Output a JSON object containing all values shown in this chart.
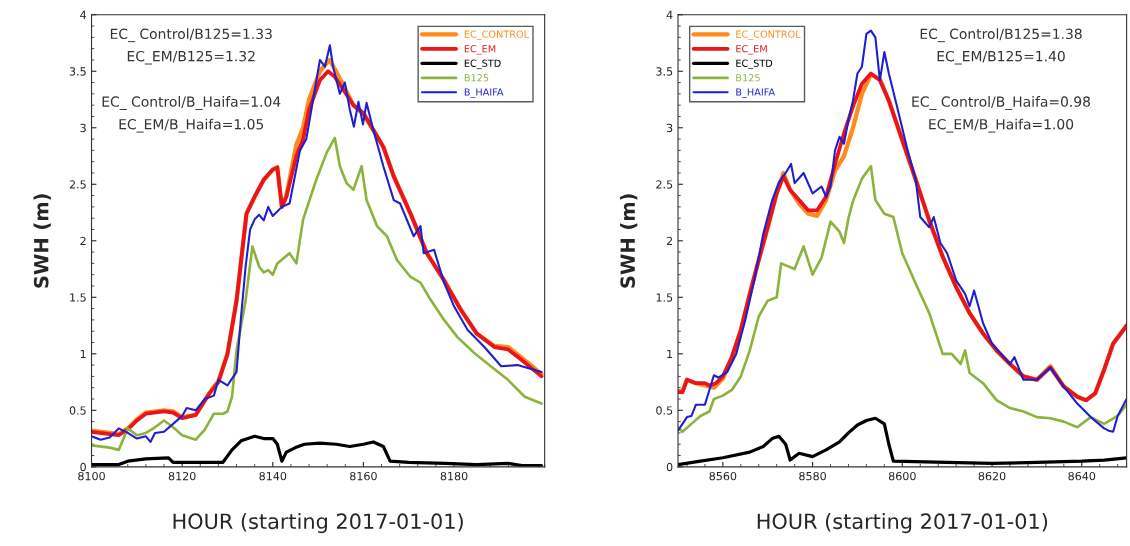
{
  "chart_data": [
    {
      "type": "line",
      "xlabel": "HOUR (starting 2017-01-01)",
      "ylabel": "SWH (m)",
      "xlim": [
        8100,
        8200
      ],
      "ylim": [
        0,
        4
      ],
      "xticks": [
        8100,
        8120,
        8140,
        8160,
        8180
      ],
      "yticks": [
        0,
        0.5,
        1,
        1.5,
        2,
        2.5,
        3,
        3.5,
        4
      ],
      "grid": false,
      "legend": "top right",
      "annotations": [
        "EC_ Control/B125=1.33",
        "EC_EM/B125=1.32",
        "EC_ Control/B_Haifa=1.04",
        "EC_EM/B_Haifa=1.05"
      ],
      "series": [
        {
          "name": "EC_CONTROL",
          "color": "#ff8c1a",
          "x": [
            8100,
            8104,
            8106,
            8108,
            8110,
            8112,
            8116,
            8118,
            8120,
            8123,
            8126,
            8128,
            8130,
            8132,
            8134.2,
            8136,
            8138,
            8140,
            8141,
            8142,
            8143,
            8145.2,
            8146.7,
            8148,
            8150.4,
            8152.5,
            8153.7,
            8155.5,
            8157.8,
            8160,
            8162.2,
            8164.4,
            8166.7,
            8170.4,
            8174,
            8177.8,
            8181.5,
            8185,
            8188.9,
            8191.9,
            8194.8,
            8199.3
          ],
          "values": [
            0.32,
            0.3,
            0.29,
            0.34,
            0.42,
            0.48,
            0.5,
            0.49,
            0.44,
            0.46,
            0.65,
            0.76,
            1.0,
            1.47,
            2.24,
            2.39,
            2.54,
            2.63,
            2.65,
            2.3,
            2.4,
            2.85,
            3.0,
            3.25,
            3.5,
            3.6,
            3.52,
            3.38,
            3.2,
            3.12,
            2.98,
            2.83,
            2.57,
            2.24,
            1.89,
            1.65,
            1.39,
            1.18,
            1.07,
            1.06,
            0.97,
            0.82
          ]
        },
        {
          "name": "EC_EM",
          "color": "#e8141e",
          "x": [
            8100,
            8104,
            8106,
            8108,
            8110,
            8112,
            8116,
            8118,
            8120,
            8123,
            8126,
            8128,
            8130,
            8132,
            8134.2,
            8136,
            8138,
            8140,
            8141,
            8142,
            8143,
            8145.2,
            8146.7,
            8148,
            8150.4,
            8152.2,
            8153.7,
            8155.5,
            8157.8,
            8160,
            8162.2,
            8164.4,
            8166.7,
            8170.4,
            8174,
            8177.8,
            8181.5,
            8185,
            8188.9,
            8191.9,
            8194.8,
            8199.3
          ],
          "values": [
            0.31,
            0.29,
            0.28,
            0.33,
            0.41,
            0.47,
            0.49,
            0.48,
            0.43,
            0.46,
            0.65,
            0.75,
            1.0,
            1.47,
            2.24,
            2.39,
            2.54,
            2.63,
            2.65,
            2.3,
            2.39,
            2.75,
            2.9,
            3.16,
            3.42,
            3.5,
            3.45,
            3.34,
            3.2,
            3.13,
            2.98,
            2.83,
            2.57,
            2.24,
            1.89,
            1.65,
            1.39,
            1.18,
            1.06,
            1.04,
            0.95,
            0.8
          ]
        },
        {
          "name": "EC_STD",
          "color": "#000000",
          "x": [
            8100,
            8106,
            8108,
            8112,
            8117,
            8118,
            8129,
            8131,
            8133,
            8136,
            8138,
            8140,
            8141,
            8142,
            8143,
            8145,
            8147,
            8150.4,
            8154,
            8157,
            8160,
            8162.2,
            8164.4,
            8165.9,
            8170,
            8178,
            8185,
            8191.9,
            8195,
            8199.3
          ],
          "values": [
            0.02,
            0.02,
            0.05,
            0.07,
            0.08,
            0.04,
            0.04,
            0.15,
            0.23,
            0.27,
            0.25,
            0.25,
            0.2,
            0.05,
            0.13,
            0.17,
            0.2,
            0.21,
            0.2,
            0.18,
            0.2,
            0.22,
            0.18,
            0.05,
            0.04,
            0.03,
            0.02,
            0.03,
            0.01,
            0.01
          ]
        },
        {
          "name": "B125",
          "color": "#8cb43c",
          "x": [
            8100,
            8104,
            8106,
            8108,
            8110,
            8112,
            8114,
            8116,
            8118,
            8120,
            8123,
            8125,
            8127,
            8129,
            8130,
            8131,
            8132,
            8134,
            8135.5,
            8137,
            8138,
            8139,
            8140,
            8141,
            8143.7,
            8145.2,
            8146.7,
            8148.1,
            8149.6,
            8151.9,
            8153.7,
            8154.8,
            8156.3,
            8157.8,
            8159.6,
            8160.7,
            8163,
            8165.2,
            8167.4,
            8170.4,
            8172.6,
            8174.8,
            8177.8,
            8180.7,
            8184.4,
            8188.1,
            8191.9,
            8195.6,
            8199.3
          ],
          "values": [
            0.19,
            0.17,
            0.15,
            0.34,
            0.28,
            0.3,
            0.35,
            0.41,
            0.35,
            0.28,
            0.24,
            0.33,
            0.47,
            0.47,
            0.49,
            0.62,
            1.03,
            1.47,
            1.95,
            1.77,
            1.72,
            1.74,
            1.7,
            1.8,
            1.89,
            1.8,
            2.19,
            2.36,
            2.54,
            2.78,
            2.91,
            2.66,
            2.51,
            2.45,
            2.66,
            2.36,
            2.13,
            2.04,
            1.83,
            1.68,
            1.63,
            1.48,
            1.3,
            1.15,
            1.01,
            0.89,
            0.77,
            0.62,
            0.56
          ]
        },
        {
          "name": "B_HAIFA",
          "color": "#1f1fd2",
          "x": [
            8100,
            8102,
            8104,
            8106,
            8108,
            8110,
            8112,
            8113,
            8114,
            8116,
            8118,
            8120,
            8121,
            8123,
            8125,
            8127,
            8128,
            8130,
            8132,
            8133,
            8134,
            8135,
            8136,
            8137,
            8138,
            8139,
            8140,
            8142,
            8143.7,
            8146,
            8147.4,
            8148.9,
            8150.4,
            8151.5,
            8152.6,
            8153.3,
            8154.8,
            8155.9,
            8157,
            8157.9,
            8158.9,
            8159.9,
            8160.7,
            8162.2,
            8164.4,
            8166.7,
            8168.1,
            8171.1,
            8172.6,
            8173.3,
            8175.6,
            8177.8,
            8180,
            8183,
            8186.7,
            8190.4,
            8194,
            8199.3
          ],
          "values": [
            0.27,
            0.24,
            0.26,
            0.34,
            0.3,
            0.25,
            0.27,
            0.22,
            0.3,
            0.31,
            0.38,
            0.45,
            0.52,
            0.5,
            0.6,
            0.63,
            0.77,
            0.72,
            0.84,
            1.33,
            1.77,
            2.1,
            2.19,
            2.23,
            2.18,
            2.3,
            2.22,
            2.3,
            2.33,
            2.8,
            2.9,
            3.25,
            3.6,
            3.54,
            3.73,
            3.54,
            3.3,
            3.4,
            3.16,
            3.01,
            3.23,
            3.03,
            3.22,
            2.98,
            2.66,
            2.36,
            2.33,
            2.04,
            2.13,
            1.89,
            1.92,
            1.63,
            1.42,
            1.21,
            1.06,
            0.89,
            0.9,
            0.84
          ]
        }
      ]
    },
    {
      "type": "line",
      "xlabel": "HOUR (starting 2017-01-01)",
      "ylabel": "SWH (m)",
      "xlim": [
        8550,
        8650
      ],
      "ylim": [
        0,
        4
      ],
      "xticks": [
        8560,
        8580,
        8600,
        8620,
        8640
      ],
      "yticks": [
        0,
        0.5,
        1,
        1.5,
        2,
        2.5,
        3,
        3.5,
        4
      ],
      "grid": false,
      "legend": "top left",
      "annotations": [
        "EC_ Control/B125=1.38",
        "EC_EM/B125=1.40",
        "EC_ Control/B_Haifa=0.98",
        "EC_EM/B_Haifa=1.00"
      ],
      "series": [
        {
          "name": "EC_CONTROL",
          "color": "#ff8c1a",
          "x": [
            8550,
            8551,
            8552,
            8554,
            8556,
            8558,
            8560,
            8562,
            8564,
            8566,
            8568,
            8570,
            8572,
            8573.5,
            8575,
            8577,
            8579,
            8581,
            8583,
            8585,
            8587,
            8589,
            8591,
            8593,
            8595,
            8597,
            8600,
            8603,
            8606,
            8609,
            8612,
            8615,
            8618,
            8621,
            8624,
            8627,
            8630,
            8633,
            8636,
            8639,
            8641,
            8643,
            8645,
            8647,
            8650
          ],
          "values": [
            0.67,
            0.67,
            0.77,
            0.74,
            0.72,
            0.7,
            0.78,
            0.97,
            1.21,
            1.53,
            1.83,
            2.12,
            2.42,
            2.6,
            2.45,
            2.33,
            2.24,
            2.22,
            2.36,
            2.62,
            2.75,
            3.0,
            3.3,
            3.47,
            3.43,
            3.24,
            2.89,
            2.54,
            2.18,
            1.86,
            1.59,
            1.36,
            1.18,
            1.03,
            0.91,
            0.8,
            0.77,
            0.89,
            0.71,
            0.62,
            0.59,
            0.65,
            0.86,
            1.09,
            1.25
          ]
        },
        {
          "name": "EC_EM",
          "color": "#e8141e",
          "x": [
            8550,
            8551,
            8552,
            8554,
            8556,
            8557,
            8558.5,
            8560,
            8562,
            8564,
            8566,
            8568,
            8570,
            8572,
            8573.5,
            8575,
            8577,
            8579,
            8581,
            8583,
            8585,
            8587,
            8589,
            8591,
            8593,
            8595,
            8597,
            8600,
            8603,
            8606,
            8609,
            8612,
            8615,
            8618,
            8621,
            8624,
            8627,
            8630,
            8633,
            8636,
            8639,
            8641,
            8643,
            8645,
            8647,
            8650
          ],
          "values": [
            0.66,
            0.66,
            0.77,
            0.74,
            0.74,
            0.72,
            0.74,
            0.8,
            0.97,
            1.21,
            1.53,
            1.83,
            2.12,
            2.42,
            2.57,
            2.45,
            2.36,
            2.27,
            2.27,
            2.39,
            2.68,
            2.95,
            3.19,
            3.39,
            3.48,
            3.42,
            3.24,
            2.89,
            2.54,
            2.18,
            1.86,
            1.59,
            1.36,
            1.18,
            1.03,
            0.91,
            0.8,
            0.77,
            0.88,
            0.71,
            0.62,
            0.59,
            0.65,
            0.86,
            1.09,
            1.25
          ]
        },
        {
          "name": "EC_STD",
          "color": "#000000",
          "x": [
            8550,
            8555,
            8560,
            8566,
            8569,
            8571,
            8572.5,
            8574,
            8575,
            8577,
            8580,
            8583,
            8586,
            8588,
            8590,
            8592,
            8594,
            8596,
            8597,
            8598,
            8610,
            8620,
            8630,
            8640,
            8645,
            8650
          ],
          "values": [
            0.02,
            0.05,
            0.08,
            0.13,
            0.18,
            0.25,
            0.27,
            0.2,
            0.06,
            0.12,
            0.09,
            0.15,
            0.22,
            0.3,
            0.37,
            0.41,
            0.43,
            0.38,
            0.2,
            0.05,
            0.04,
            0.03,
            0.04,
            0.05,
            0.06,
            0.08
          ]
        },
        {
          "name": "B125",
          "color": "#8cb43c",
          "x": [
            8550,
            8551,
            8553,
            8555,
            8557,
            8558,
            8560,
            8562,
            8564,
            8566,
            8568,
            8570,
            8572,
            8573,
            8576,
            8578,
            8580,
            8582,
            8584,
            8586,
            8587,
            8588,
            8589,
            8591,
            8593,
            8594,
            8596,
            8598,
            8600,
            8603,
            8606,
            8609,
            8611,
            8613,
            8614,
            8615,
            8618,
            8621,
            8624,
            8627,
            8630,
            8633,
            8636,
            8639,
            8642,
            8645,
            8648,
            8650
          ],
          "values": [
            0.35,
            0.31,
            0.38,
            0.45,
            0.49,
            0.6,
            0.63,
            0.68,
            0.8,
            1.03,
            1.33,
            1.47,
            1.5,
            1.8,
            1.75,
            1.95,
            1.7,
            1.85,
            2.17,
            2.08,
            1.98,
            2.2,
            2.35,
            2.55,
            2.66,
            2.36,
            2.24,
            2.21,
            1.89,
            1.62,
            1.36,
            1.0,
            1.0,
            0.91,
            1.03,
            0.83,
            0.74,
            0.59,
            0.52,
            0.49,
            0.44,
            0.43,
            0.4,
            0.35,
            0.44,
            0.38,
            0.45,
            0.55
          ]
        },
        {
          "name": "B_HAIFA",
          "color": "#1f1fd2",
          "x": [
            8550,
            8552,
            8553,
            8554,
            8556,
            8557,
            8558,
            8559,
            8561,
            8563,
            8565,
            8567,
            8569,
            8571,
            8572.5,
            8574,
            8575.2,
            8576,
            8578,
            8580,
            8582,
            8583,
            8584,
            8585,
            8586,
            8587,
            8588,
            8589,
            8590,
            8591,
            8592,
            8593,
            8594,
            8595,
            8596,
            8597,
            8599,
            8601,
            8603,
            8604,
            8606,
            8607,
            8608.5,
            8610,
            8612,
            8614,
            8615,
            8616,
            8618,
            8620,
            8622,
            8624,
            8625,
            8627,
            8630,
            8633,
            8636,
            8639,
            8642,
            8645,
            8646,
            8647,
            8648,
            8650
          ],
          "values": [
            0.32,
            0.44,
            0.45,
            0.55,
            0.55,
            0.68,
            0.81,
            0.79,
            0.84,
            1.0,
            1.3,
            1.65,
            2.06,
            2.36,
            2.52,
            2.6,
            2.68,
            2.51,
            2.6,
            2.42,
            2.48,
            2.39,
            2.48,
            2.8,
            2.92,
            2.86,
            3.07,
            3.24,
            3.48,
            3.54,
            3.83,
            3.86,
            3.8,
            3.42,
            3.67,
            3.48,
            3.16,
            2.83,
            2.54,
            2.21,
            2.12,
            2.21,
            1.98,
            1.89,
            1.65,
            1.53,
            1.42,
            1.56,
            1.27,
            1.09,
            1.0,
            0.91,
            0.97,
            0.77,
            0.77,
            0.88,
            0.71,
            0.56,
            0.44,
            0.34,
            0.32,
            0.31,
            0.45,
            0.6
          ]
        }
      ]
    }
  ]
}
